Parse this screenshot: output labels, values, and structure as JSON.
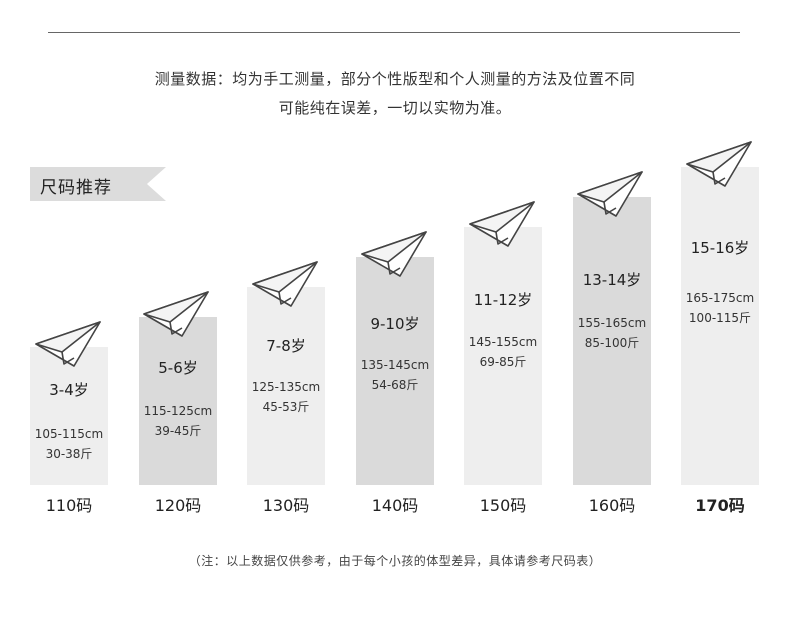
{
  "notice": {
    "line1": "测量数据：均为手工测量，部分个性版型和个人测量的方法及位置不同",
    "line2": "可能纯在误差，一切以实物为准。"
  },
  "tag": {
    "label": "尺码推荐"
  },
  "icon": "paper-plane-icon",
  "sizes": [
    {
      "age": "3-4岁",
      "height": "105-115cm",
      "weight": "30-38斤",
      "code": "110码"
    },
    {
      "age": "5-6岁",
      "height": "115-125cm",
      "weight": "39-45斤",
      "code": "120码"
    },
    {
      "age": "7-8岁",
      "height": "125-135cm",
      "weight": "45-53斤",
      "code": "130码"
    },
    {
      "age": "9-10岁",
      "height": "135-145cm",
      "weight": "54-68斤",
      "code": "140码"
    },
    {
      "age": "11-12岁",
      "height": "145-155cm",
      "weight": "69-85斤",
      "code": "150码"
    },
    {
      "age": "13-14岁",
      "height": "155-165cm",
      "weight": "85-100斤",
      "code": "160码"
    },
    {
      "age": "15-16岁",
      "height": "165-175cm",
      "weight": "100-115斤",
      "code": "170码"
    }
  ],
  "footnote": "（注：以上数据仅供参考，由于每个小孩的体型差异，具体请参考尺码表）",
  "colors": {
    "light_column": "#eeeeee",
    "dark_column": "#dadada",
    "tag": "#dcdcdc"
  }
}
